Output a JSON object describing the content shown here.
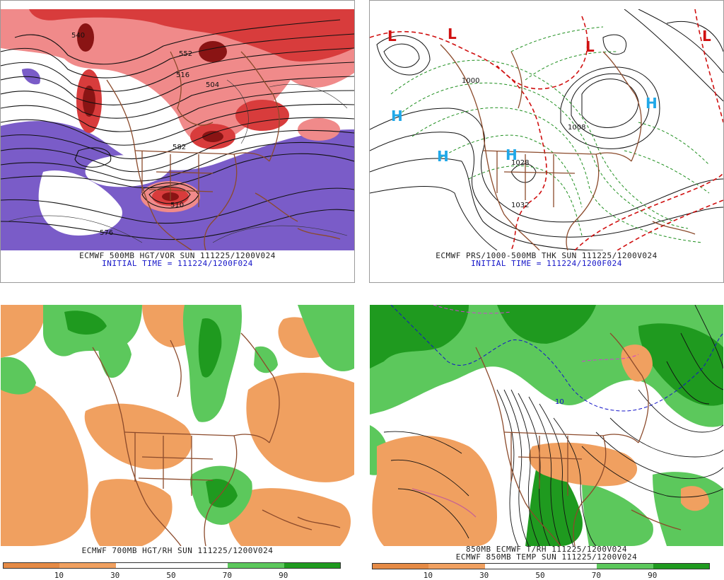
{
  "panels": [
    {
      "caption": "ECMWF 500MB HGT/VOR SUN 111225/1200V024",
      "subcaption": "INITIAL TIME = 111224/1200F024",
      "labels": [
        "582",
        "576",
        "552",
        "540",
        "516",
        "504",
        "510"
      ]
    },
    {
      "caption": "ECMWF PRS/1000-500MB THK SUN 111225/1200V024",
      "subcaption": "INITIAL TIME = 111224/1200F024",
      "labels": [
        "H",
        "H",
        "H",
        "H",
        "L",
        "L",
        "L",
        "L",
        "1000",
        "1032",
        "1008",
        "1028"
      ]
    },
    {
      "caption": "ECMWF 700MB HGT/RH SUN 111225/1200V024",
      "colorbar": {
        "labels": [
          "10",
          "30",
          "50",
          "70",
          "90"
        ]
      }
    },
    {
      "caption": "850MB ECMWF T/RH 111225/1200V024",
      "caption2": "ECMWF 850MB TEMP SUN 111225/1200V024",
      "colorbar": {
        "labels": [
          "10",
          "30",
          "50",
          "70",
          "90"
        ]
      },
      "labels": [
        "10"
      ]
    }
  ],
  "colors": {
    "vort_red": "#d83c3c",
    "vort_pink": "#f08a8a",
    "vort_purple": "#7a5cc8",
    "rh_green": "#1f9a1f",
    "rh_lightgreen": "#5cc85c",
    "rh_orange": "#f0a060",
    "rh_darkorange": "#e58a45",
    "border_brown": "#8b4a2b",
    "high_blue": "#20a8e8",
    "low_red": "#d01010"
  }
}
